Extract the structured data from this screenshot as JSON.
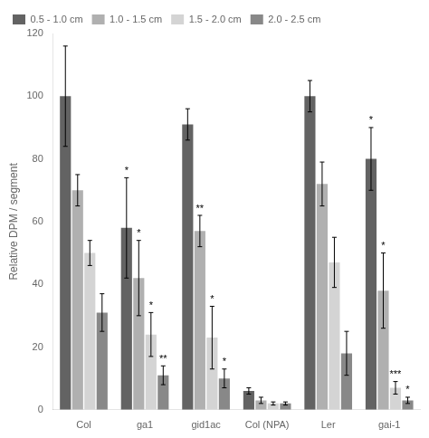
{
  "chart_data": {
    "type": "bar",
    "ylabel": "Relative DPM / segment",
    "categories": [
      "Col",
      "ga1",
      "gid1ac",
      "Col (NPA)",
      "Ler",
      "gai-1"
    ],
    "series": [
      {
        "name": "0.5 - 1.0 cm",
        "color": "#636363",
        "values": [
          100,
          58,
          91,
          6,
          100,
          80
        ],
        "errors": [
          16,
          16,
          5,
          1,
          5,
          10
        ],
        "significance": [
          null,
          "*",
          null,
          null,
          null,
          "*"
        ]
      },
      {
        "name": "1.0 - 1.5 cm",
        "color": "#b0b0b0",
        "values": [
          70,
          42,
          57,
          3,
          72,
          38
        ],
        "errors": [
          5,
          12,
          5,
          1,
          7,
          12
        ],
        "significance": [
          null,
          "*",
          "**",
          null,
          null,
          "*"
        ]
      },
      {
        "name": "1.5 - 2.0 cm",
        "color": "#d4d4d4",
        "values": [
          50,
          24,
          23,
          2,
          47,
          7
        ],
        "errors": [
          4,
          7,
          10,
          0.5,
          8,
          2
        ],
        "significance": [
          null,
          "*",
          "*",
          null,
          null,
          "***"
        ]
      },
      {
        "name": "2.0 - 2.5 cm",
        "color": "#888888",
        "values": [
          31,
          11,
          10,
          2,
          18,
          3
        ],
        "errors": [
          6,
          3,
          3,
          0.5,
          7,
          1
        ],
        "significance": [
          null,
          "**",
          "*",
          null,
          null,
          "*"
        ]
      }
    ],
    "ylim": [
      0,
      120
    ],
    "yticks": [
      0,
      20,
      40,
      60,
      80,
      100,
      120
    ],
    "grid": false,
    "legend": "upper left"
  }
}
